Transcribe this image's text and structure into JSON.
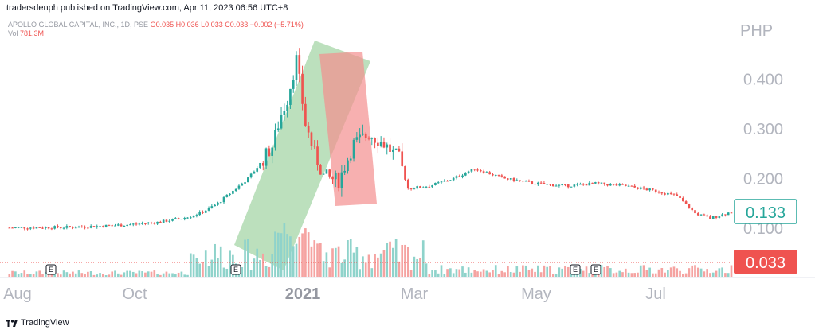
{
  "header": {
    "published": "tradersdenph published on TradingView.com, Apr 11, 2023 06:56 UTC+8"
  },
  "legend": {
    "symbol": "APOLLO GLOBAL CAPITAL, INC., 1D, PSE",
    "open": "O0.035",
    "high": "H0.036",
    "low": "L0.033",
    "close": "C0.033",
    "change": "−0.002 (−5.71%)",
    "vol_label": "Vol",
    "vol_value": "781.3M"
  },
  "footer": {
    "brand": "TradingView"
  },
  "colors": {
    "up": "#26a69a",
    "down": "#ef5350",
    "up_vol": "#8fd3cb",
    "down_vol": "#f5a3a1",
    "green_box": "#a5d6a7",
    "red_box": "#f48f8f",
    "axis_text": "#b2b5be"
  },
  "chart_data": {
    "type": "candlestick",
    "currency": "PHP",
    "y_ticks": [
      "0.100",
      "0.200",
      "0.300",
      "0.400"
    ],
    "ylim": [
      0.06,
      0.52
    ],
    "x_ticks": [
      "Aug",
      "Oct",
      "2021",
      "Mar",
      "May",
      "Jul"
    ],
    "last_price": "0.133",
    "last_volume_label": "0.033",
    "earnings_markers": [
      "E",
      "E",
      "E",
      "E"
    ],
    "close_path": [
      [
        0,
        0.101
      ],
      [
        20,
        0.102
      ],
      [
        30,
        0.104
      ],
      [
        40,
        0.107
      ],
      [
        50,
        0.112
      ],
      [
        60,
        0.122
      ],
      [
        65,
        0.133
      ],
      [
        70,
        0.15
      ],
      [
        75,
        0.175
      ],
      [
        80,
        0.2
      ],
      [
        84,
        0.23
      ],
      [
        88,
        0.265
      ],
      [
        91,
        0.33
      ],
      [
        93,
        0.36
      ],
      [
        96,
        0.44
      ],
      [
        99,
        0.31
      ],
      [
        102,
        0.25
      ],
      [
        105,
        0.205
      ],
      [
        110,
        0.195
      ],
      [
        115,
        0.27
      ],
      [
        120,
        0.29
      ],
      [
        125,
        0.27
      ],
      [
        130,
        0.24
      ],
      [
        133,
        0.18
      ],
      [
        140,
        0.185
      ],
      [
        148,
        0.2
      ],
      [
        155,
        0.22
      ],
      [
        165,
        0.2
      ],
      [
        175,
        0.19
      ],
      [
        185,
        0.185
      ],
      [
        195,
        0.19
      ],
      [
        205,
        0.185
      ],
      [
        215,
        0.175
      ],
      [
        222,
        0.165
      ],
      [
        228,
        0.13
      ],
      [
        233,
        0.12
      ],
      [
        240,
        0.133
      ]
    ],
    "annotations": [
      {
        "type": "rectangle",
        "color": "green",
        "from": [
          55,
          0.0
        ],
        "to": [
          110,
          0.45
        ]
      },
      {
        "type": "rectangle",
        "color": "red",
        "from": [
          92,
          0.45
        ],
        "to": [
          106,
          0.15
        ]
      }
    ]
  }
}
